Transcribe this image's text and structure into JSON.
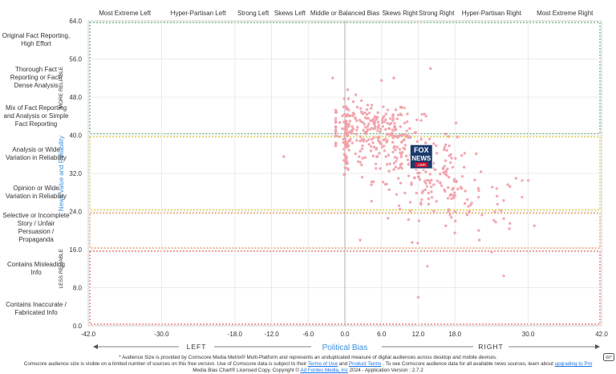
{
  "chart_data": {
    "type": "scatter",
    "xlabel": "Political Bias",
    "ylabel": "News Value and Reliability",
    "xlim": [
      -42,
      42
    ],
    "ylim": [
      0,
      64
    ],
    "x_ticks": [
      "-42.0",
      "-30.0",
      "-18.0",
      "-12.0",
      "-6.0",
      "0.0",
      "6.0",
      "12.0",
      "18.0",
      "30.0",
      "42.0"
    ],
    "x_tick_values": [
      -42,
      -30,
      -18,
      -12,
      -6,
      0,
      6,
      12,
      18,
      30,
      42
    ],
    "y_ticks": [
      "0.0",
      "8.0",
      "16.0",
      "24.0",
      "32.0",
      "40.0",
      "48.0",
      "56.0",
      "64.0"
    ],
    "y_tick_values": [
      0,
      8,
      16,
      24,
      32,
      40,
      48,
      56,
      64
    ],
    "bias_categories": [
      {
        "label": "Most Extreme Left",
        "x": -36
      },
      {
        "label": "Hyper-Partisan Left",
        "x": -24
      },
      {
        "label": "Strong Left",
        "x": -15
      },
      {
        "label": "Skews Left",
        "x": -9
      },
      {
        "label": "Middle or Balanced Bias",
        "x": 0
      },
      {
        "label": "Skews Right",
        "x": 9
      },
      {
        "label": "Strong Right",
        "x": 15
      },
      {
        "label": "Hyper-Partisan Right",
        "x": 24
      },
      {
        "label": "Most Extreme Right",
        "x": 36
      }
    ],
    "reliability_categories": [
      {
        "label": "Original Fact Reporting, High Effort",
        "y": 60
      },
      {
        "label": "Thorough Fact Reporting or Fact-Dense Analysis",
        "y": 52
      },
      {
        "label": "Mix of Fact Reporting and Analysis or Simple Fact Reporting",
        "y": 44
      },
      {
        "label": "Analysis or Wide Variation in Reliability",
        "y": 36
      },
      {
        "label": "Opinion or Wide Variation in Reliability",
        "y": 28
      },
      {
        "label": "Selective or Incomplete Story / Unfair Persuasion / Propaganda",
        "y": 20.5
      },
      {
        "label": "Contains Misleading Info",
        "y": 12
      },
      {
        "label": "Contains Inaccurate / Fabricated Info",
        "y": 3.5
      }
    ],
    "bands": [
      {
        "y0": 40,
        "y1": 64,
        "color": "#3a9a4a"
      },
      {
        "y0": 24,
        "y1": 40,
        "color": "#c8b400"
      },
      {
        "y0": 16,
        "y1": 24,
        "color": "#e07020"
      },
      {
        "y0": 0,
        "y1": 16,
        "color": "#e04040"
      }
    ],
    "side_labels": {
      "top": "MORE RELIABLE",
      "bottom": "LESS RELIABLE"
    },
    "arrow_labels": {
      "left": "LEFT",
      "right": "RIGHT"
    },
    "point_color": "#f2a0a8",
    "logo_text": {
      "line1": "FOX",
      "line2": "NEWS",
      "line3": ".com"
    },
    "logo_position": [
      12.5,
      35.5
    ],
    "clusters": [
      {
        "cx": 4,
        "cy": 42,
        "sx": 3.5,
        "sy": 2.6,
        "n": 170
      },
      {
        "cx": 9,
        "cy": 37,
        "sx": 4.5,
        "sy": 3.2,
        "n": 150
      },
      {
        "cx": 14,
        "cy": 30,
        "sx": 3.5,
        "sy": 4,
        "n": 90
      },
      {
        "cx": 21,
        "cy": 25,
        "sx": 4,
        "sy": 3,
        "n": 45
      },
      {
        "cx": 0.3,
        "cy": 40,
        "sx": 0.25,
        "sy": 4,
        "n": 60
      }
    ],
    "outliers": [
      [
        -2,
        52
      ],
      [
        -10,
        35.5
      ],
      [
        2.5,
        18
      ],
      [
        12,
        6
      ],
      [
        26,
        10.5
      ],
      [
        31,
        21
      ],
      [
        28,
        31
      ],
      [
        29,
        30.5
      ],
      [
        30,
        30.5
      ],
      [
        16.5,
        21
      ],
      [
        18,
        19.5
      ],
      [
        9,
        24.5
      ],
      [
        11,
        17.5
      ],
      [
        13.5,
        12.5
      ],
      [
        26,
        22.5
      ],
      [
        24,
        15.5
      ],
      [
        27,
        21.5
      ],
      [
        22,
        18
      ],
      [
        14,
        54
      ],
      [
        8,
        52
      ],
      [
        6,
        51.5
      ]
    ]
  },
  "footer": {
    "line1": "* Audience Size is provided by Comscore Media Metrix® Multi-Platform and represents an unduplicated measure of digital audiences across desktop and mobile devices.",
    "line2a": "Comscore audience size is visible on a limited number of sources on this free version. Use of Comscore data is subject to their ",
    "terms_link": "Terms of Use",
    "line2b": " and ",
    "product_terms_link": "Product Terms",
    "line2c": " . To see Comscore audience data for all available news sources, learn about ",
    "upgrade_link": "upgrading to Pro",
    "line3a": "Media Bias Chart® Licensed Copy. Copyright © ",
    "adfontes_link": "Ad Fontes Media, Inc",
    "line3b": " 2024 - Application Version : 2.7.2"
  },
  "icons": {
    "corner": "chat-icon"
  }
}
